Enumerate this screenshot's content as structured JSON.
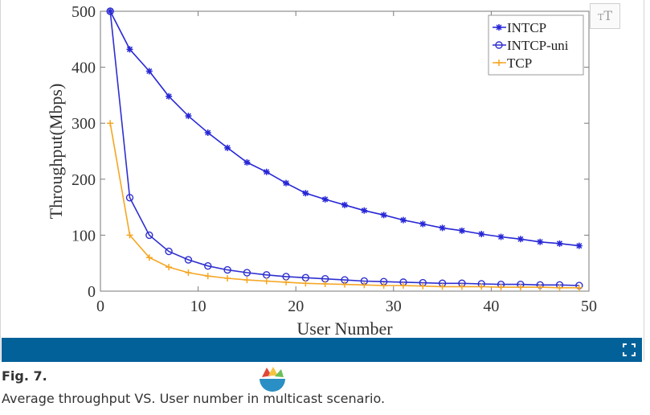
{
  "colors": {
    "intcp": "#2727d6",
    "intcp_uni": "#2f2fd0",
    "tcp": "#f5a623",
    "bar": "#036199",
    "axis": "#7a7a7a"
  },
  "figure": {
    "label": "Fig. 7.",
    "caption": "Average throughput VS. User number in multicast scenario.",
    "text_size_icon": "text-size-icon",
    "expand_icon": "expand-icon"
  },
  "chart_data": {
    "type": "line",
    "title": "",
    "xlabel": "User Number",
    "ylabel": "Throughput(Mbps)",
    "xlim": [
      0,
      50
    ],
    "ylim": [
      0,
      500
    ],
    "xticks": [
      0,
      10,
      20,
      30,
      40,
      50
    ],
    "yticks": [
      0,
      100,
      200,
      300,
      400,
      500
    ],
    "grid": false,
    "legend_position": "top-right",
    "x": [
      1,
      3,
      5,
      7,
      9,
      11,
      13,
      15,
      17,
      19,
      21,
      23,
      25,
      27,
      29,
      31,
      33,
      35,
      37,
      39,
      41,
      43,
      45,
      47,
      49
    ],
    "series": [
      {
        "name": "INTCP",
        "marker": "star",
        "color": "#2727d6",
        "values": [
          500,
          432,
          393,
          348,
          313,
          283,
          256,
          230,
          213,
          193,
          175,
          164,
          154,
          144,
          136,
          127,
          120,
          113,
          108,
          102,
          97,
          93,
          88,
          85,
          81
        ]
      },
      {
        "name": "INTCP-uni",
        "marker": "circle",
        "color": "#2f2fd0",
        "values": [
          500,
          167,
          100,
          71,
          56,
          45,
          38,
          33,
          29,
          26,
          24,
          22,
          20,
          18,
          17,
          16,
          15,
          14,
          14,
          13,
          12,
          12,
          11,
          11,
          10
        ]
      },
      {
        "name": "TCP",
        "marker": "plus",
        "color": "#f5a623",
        "values": [
          300,
          100,
          60,
          43,
          33,
          27,
          23,
          20,
          18,
          16,
          14,
          13,
          12,
          11,
          10,
          10,
          9,
          8,
          8,
          8,
          7,
          7,
          7,
          6,
          6
        ]
      }
    ]
  }
}
